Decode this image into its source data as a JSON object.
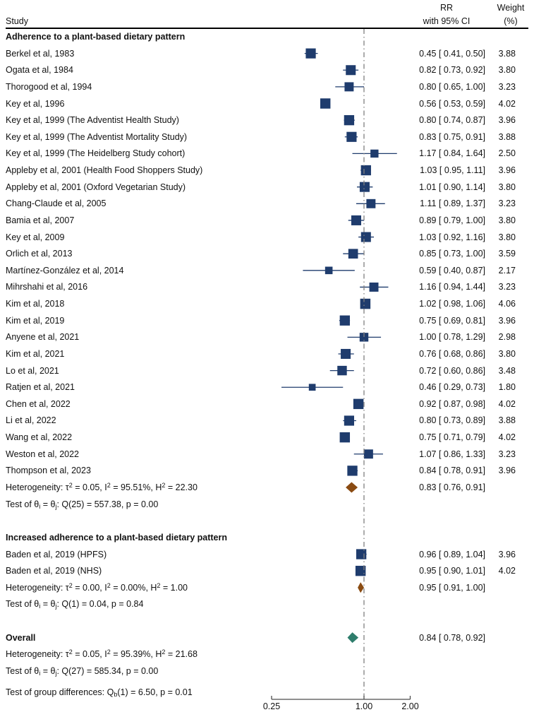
{
  "header": {
    "study": "Study",
    "rr_line1": "RR",
    "rr_line2": "with 95% CI",
    "weight_line1": "Weight",
    "weight_line2": "(%)"
  },
  "colors": {
    "marker": "#1f3c6d",
    "ci_line": "#1f3c6d",
    "group_diamond": "#8a4b12",
    "overall_diamond": "#2e7d6c",
    "reference_line": "#808080",
    "axis": "#4d4d4d",
    "text": "#111111"
  },
  "chart_data": {
    "type": "forest",
    "x_scale": "log2",
    "effect_label": "RR",
    "reference_value": 1.0,
    "axis_ticks": [
      {
        "label": "0.25",
        "value": 0.25
      },
      {
        "label": "1.00",
        "value": 1.0
      },
      {
        "label": "2.00",
        "value": 2.0
      }
    ],
    "groups": [
      {
        "title": "Adherence to a plant-based dietary pattern",
        "studies": [
          {
            "label": "Berkel et al, 1983",
            "rr": "0.45",
            "lo": "0.41",
            "hi": "0.50",
            "weight": "3.88"
          },
          {
            "label": "Ogata et al, 1984",
            "rr": "0.82",
            "lo": "0.73",
            "hi": "0.92",
            "weight": "3.80"
          },
          {
            "label": "Thorogood et al, 1994",
            "rr": "0.80",
            "lo": "0.65",
            "hi": "1.00",
            "weight": "3.23"
          },
          {
            "label": "Key et al, 1996",
            "rr": "0.56",
            "lo": "0.53",
            "hi": "0.59",
            "weight": "4.02"
          },
          {
            "label": "Key et al, 1999 (The Adventist Health Study)",
            "rr": "0.80",
            "lo": "0.74",
            "hi": "0.87",
            "weight": "3.96"
          },
          {
            "label": "Key et al, 1999 (The Adventist Mortality Study)",
            "rr": "0.83",
            "lo": "0.75",
            "hi": "0.91",
            "weight": "3.88"
          },
          {
            "label": "Key et al, 1999 (The Heidelberg Study cohort)",
            "rr": "1.17",
            "lo": "0.84",
            "hi": "1.64",
            "weight": "2.50"
          },
          {
            "label": "Appleby et al, 2001 (Health Food Shoppers Study)",
            "rr": "1.03",
            "lo": "0.95",
            "hi": "1.11",
            "weight": "3.96"
          },
          {
            "label": "Appleby et al, 2001 (Oxford Vegetarian Study)",
            "rr": "1.01",
            "lo": "0.90",
            "hi": "1.14",
            "weight": "3.80"
          },
          {
            "label": "Chang-Claude et al, 2005",
            "rr": "1.11",
            "lo": "0.89",
            "hi": "1.37",
            "weight": "3.23"
          },
          {
            "label": "Bamia et al, 2007",
            "rr": "0.89",
            "lo": "0.79",
            "hi": "1.00",
            "weight": "3.80"
          },
          {
            "label": "Key et al, 2009",
            "rr": "1.03",
            "lo": "0.92",
            "hi": "1.16",
            "weight": "3.80"
          },
          {
            "label": "Orlich et al, 2013",
            "rr": "0.85",
            "lo": "0.73",
            "hi": "1.00",
            "weight": "3.59"
          },
          {
            "label": "Martínez-González et al, 2014",
            "rr": "0.59",
            "lo": "0.40",
            "hi": "0.87",
            "weight": "2.17"
          },
          {
            "label": "Mihrshahi et al, 2016",
            "rr": "1.16",
            "lo": "0.94",
            "hi": "1.44",
            "weight": "3.23"
          },
          {
            "label": "Kim et al, 2018",
            "rr": "1.02",
            "lo": "0.98",
            "hi": "1.06",
            "weight": "4.06"
          },
          {
            "label": "Kim et al, 2019",
            "rr": "0.75",
            "lo": "0.69",
            "hi": "0.81",
            "weight": "3.96"
          },
          {
            "label": "Anyene et al, 2021",
            "rr": "1.00",
            "lo": "0.78",
            "hi": "1.29",
            "weight": "2.98"
          },
          {
            "label": "Kim et al, 2021",
            "rr": "0.76",
            "lo": "0.68",
            "hi": "0.86",
            "weight": "3.80"
          },
          {
            "label": "Lo et al, 2021",
            "rr": "0.72",
            "lo": "0.60",
            "hi": "0.86",
            "weight": "3.48"
          },
          {
            "label": "Ratjen et al, 2021",
            "rr": "0.46",
            "lo": "0.29",
            "hi": "0.73",
            "weight": "1.80"
          },
          {
            "label": "Chen et al, 2022",
            "rr": "0.92",
            "lo": "0.87",
            "hi": "0.98",
            "weight": "4.02"
          },
          {
            "label": "Li et al, 2022",
            "rr": "0.80",
            "lo": "0.73",
            "hi": "0.89",
            "weight": "3.88"
          },
          {
            "label": "Wang et al, 2022",
            "rr": "0.75",
            "lo": "0.71",
            "hi": "0.79",
            "weight": "4.02"
          },
          {
            "label": "Weston et al, 2022",
            "rr": "1.07",
            "lo": "0.86",
            "hi": "1.33",
            "weight": "3.23"
          },
          {
            "label": "Thompson et al, 2023",
            "rr": "0.84",
            "lo": "0.78",
            "hi": "0.91",
            "weight": "3.96"
          }
        ],
        "summary": {
          "text": "Heterogeneity: τ^{2} = 0.05, I^{2} = 95.51%, H^{2} = 22.30",
          "rr": "0.83",
          "lo": "0.76",
          "hi": "0.91"
        },
        "test": "Test of θ_{i} = θ_{j}: Q(25) = 557.38, p = 0.00"
      },
      {
        "title": "Increased adherence to a plant-based dietary pattern",
        "studies": [
          {
            "label": "Baden et al, 2019 (HPFS)",
            "rr": "0.96",
            "lo": "0.89",
            "hi": "1.04",
            "weight": "3.96"
          },
          {
            "label": "Baden et al, 2019 (NHS)",
            "rr": "0.95",
            "lo": "0.90",
            "hi": "1.01",
            "weight": "4.02"
          }
        ],
        "summary": {
          "text": "Heterogeneity: τ^{2} = 0.00, I^{2} = 0.00%, H^{2} = 1.00",
          "rr": "0.95",
          "lo": "0.91",
          "hi": "1.00"
        },
        "test": "Test of θ_{i} = θ_{j}: Q(1) = 0.04, p = 0.84"
      }
    ],
    "overall": {
      "title": "Overall",
      "rr": "0.84",
      "lo": "0.78",
      "hi": "0.92",
      "heterogeneity": "Heterogeneity: τ^{2} = 0.05, I^{2} = 95.39%, H^{2} = 21.68",
      "test": "Test of θ_{i} = θ_{j}: Q(27) = 585.34, p = 0.00",
      "group_difference": "Test of group differences: Q_{b}(1) = 6.50, p = 0.01"
    }
  }
}
